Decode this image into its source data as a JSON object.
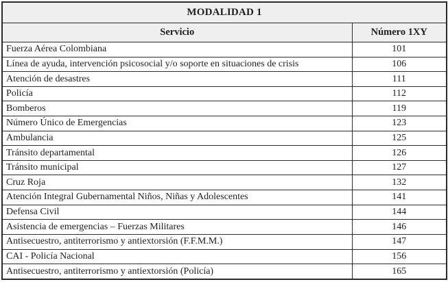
{
  "table": {
    "title": "MODALIDAD 1",
    "columns": [
      "Servicio",
      "Número 1XY"
    ],
    "rows": [
      {
        "service": "Fuerza Aérea Colombiana",
        "number": "101"
      },
      {
        "service": "Línea de ayuda, intervención psicosocial y/o soporte en situaciones de crisis",
        "number": "106"
      },
      {
        "service": "Atención de desastres",
        "number": "111"
      },
      {
        "service": "Policía",
        "number": "112"
      },
      {
        "service": "Bomberos",
        "number": "119"
      },
      {
        "service": "Número Único de Emergencias",
        "number": "123"
      },
      {
        "service": "Ambulancia",
        "number": "125"
      },
      {
        "service": "Tránsito departamental",
        "number": "126"
      },
      {
        "service": "Tránsito municipal",
        "number": "127"
      },
      {
        "service": "Cruz Roja",
        "number": "132"
      },
      {
        "service": "Atención Integral Gubernamental Niños, Niñas y Adolescentes",
        "number": "141"
      },
      {
        "service": "Defensa Civil",
        "number": "144"
      },
      {
        "service": "Asistencia de emergencias – Fuerzas Militares",
        "number": "146"
      },
      {
        "service": "Antisecuestro, antiterrorismo y antiextorsión (F.F.M.M.)",
        "number": "147"
      },
      {
        "service": "CAI - Policía Nacional",
        "number": "156"
      },
      {
        "service": "Antisecuestro, antiterrorismo y antiextorsión (Policía)",
        "number": "165"
      }
    ],
    "colors": {
      "border": "#2b2b2b",
      "header_bg": "#efefef",
      "row_bg": "#ffffff",
      "text": "#1f1f1f"
    }
  }
}
